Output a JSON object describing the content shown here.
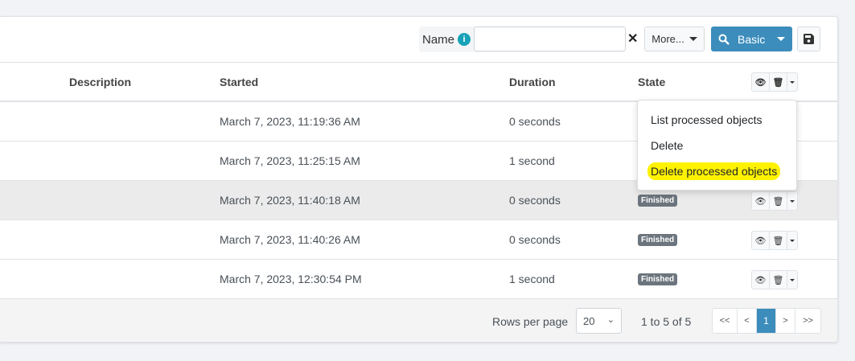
{
  "toolbar": {
    "name_label": "Name",
    "info_icon": "i",
    "name_value": "",
    "clear": "✕",
    "more_label": "More...",
    "basic_label": "Basic",
    "accent": "#3c8dbc"
  },
  "columns": {
    "description": "Description",
    "started": "Started",
    "duration": "Duration",
    "state": "State"
  },
  "rows": [
    {
      "started": "March 7, 2023, 11:19:36 AM",
      "duration": "0 seconds",
      "state": ""
    },
    {
      "started": "March 7, 2023, 11:25:15 AM",
      "duration": "1 second",
      "state": ""
    },
    {
      "started": "March 7, 2023, 11:40:18 AM",
      "duration": "0 seconds",
      "state": "Finished"
    },
    {
      "started": "March 7, 2023, 11:40:26 AM",
      "duration": "0 seconds",
      "state": "Finished"
    },
    {
      "started": "March 7, 2023, 12:30:54 PM",
      "duration": "1 second",
      "state": "Finished"
    }
  ],
  "menu": {
    "items": [
      "List processed objects",
      "Delete",
      "Delete processed objects"
    ],
    "highlight_color": "#fff200"
  },
  "footer": {
    "rows_per_page_label": "Rows per page",
    "rows_per_page": "20",
    "count": "1 to 5 of 5",
    "pager": [
      "<<",
      "<",
      "1",
      ">",
      ">>"
    ]
  }
}
